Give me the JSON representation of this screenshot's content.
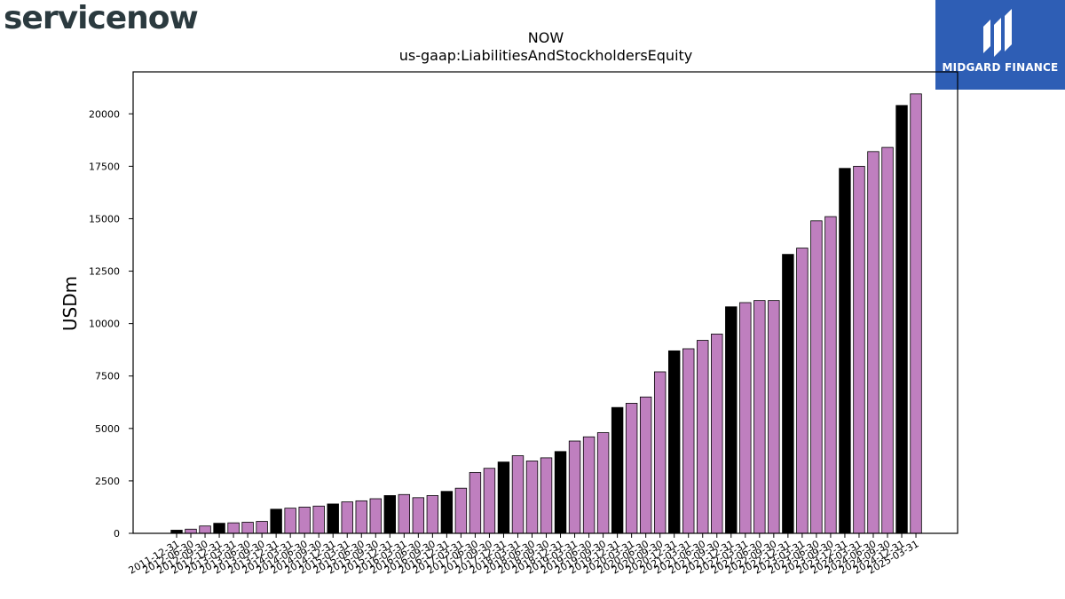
{
  "branding": {
    "left_logo_text": "servicenow",
    "right_logo_text": "MIDGARD FINANCE",
    "right_logo_color": "#2e5eb5"
  },
  "chart_data": {
    "type": "bar",
    "title": "NOW",
    "subtitle": "us-gaap:LiabilitiesAndStockholdersEquity",
    "xlabel": "",
    "ylabel": "USDm",
    "ylim": [
      0,
      22000
    ],
    "yticks": [
      0,
      2500,
      5000,
      7500,
      10000,
      12500,
      15000,
      17500,
      20000
    ],
    "grid": false,
    "colors": {
      "annual": "#000000",
      "quarter": "#bf7fbf",
      "edge": "#000000"
    },
    "categories": [
      "2011-12-31",
      "2012-06-30",
      "2012-09-30",
      "2012-12-31",
      "2013-03-31",
      "2013-06-30",
      "2013-09-30",
      "2013-12-31",
      "2014-03-31",
      "2014-06-30",
      "2014-09-30",
      "2014-12-31",
      "2015-03-31",
      "2015-06-30",
      "2015-09-30",
      "2015-12-31",
      "2016-03-31",
      "2016-06-30",
      "2016-09-30",
      "2016-12-31",
      "2017-03-31",
      "2017-06-30",
      "2017-09-30",
      "2017-12-31",
      "2018-03-31",
      "2018-06-30",
      "2018-09-30",
      "2018-12-31",
      "2019-03-31",
      "2019-06-30",
      "2019-09-30",
      "2019-12-31",
      "2020-03-31",
      "2020-06-30",
      "2020-09-30",
      "2020-12-31",
      "2021-03-31",
      "2021-06-30",
      "2021-09-30",
      "2021-12-31",
      "2022-03-31",
      "2022-06-30",
      "2022-09-30",
      "2022-12-31",
      "2023-03-31",
      "2023-06-30",
      "2023-09-30",
      "2023-12-31",
      "2024-03-31",
      "2024-06-30",
      "2024-09-30",
      "2024-12-31",
      "2025-03-31"
    ],
    "values": [
      150,
      200,
      350,
      480,
      500,
      530,
      570,
      1150,
      1200,
      1250,
      1300,
      1400,
      1500,
      1550,
      1650,
      1800,
      1850,
      1700,
      1800,
      2000,
      2150,
      2900,
      3100,
      3400,
      3700,
      3450,
      3600,
      3900,
      4400,
      4600,
      4800,
      6000,
      6200,
      6500,
      7700,
      8700,
      8800,
      9200,
      9500,
      10800,
      11000,
      11100,
      11100,
      13300,
      13600,
      14900,
      15100,
      17400,
      17500,
      18200,
      18400,
      20400,
      20950
    ],
    "annual_flags": [
      true,
      false,
      false,
      true,
      false,
      false,
      false,
      true,
      false,
      false,
      false,
      true,
      false,
      false,
      false,
      true,
      false,
      false,
      false,
      true,
      false,
      false,
      false,
      true,
      false,
      false,
      false,
      true,
      false,
      false,
      false,
      true,
      false,
      false,
      false,
      true,
      false,
      false,
      false,
      true,
      false,
      false,
      false,
      true,
      false,
      false,
      false,
      true,
      false,
      false,
      false,
      true,
      false
    ]
  }
}
